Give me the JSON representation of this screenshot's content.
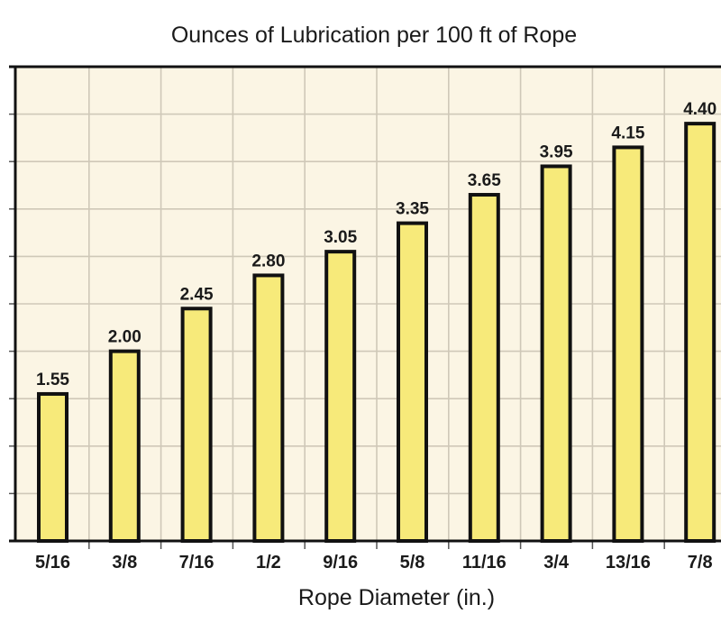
{
  "chart_data": {
    "type": "bar",
    "title": "Ounces of Lubrication per 100 ft of Rope",
    "xlabel": "Rope Diameter (in.)",
    "ylabel": "",
    "categories": [
      "5/16",
      "3/8",
      "7/16",
      "1/2",
      "9/16",
      "5/8",
      "11/16",
      "3/4",
      "13/16",
      "7/8"
    ],
    "values": [
      1.55,
      2.0,
      2.45,
      2.8,
      3.05,
      3.35,
      3.65,
      3.95,
      4.15,
      4.4
    ],
    "value_labels": [
      "1.55",
      "2.00",
      "2.45",
      "2.80",
      "3.05",
      "3.35",
      "3.65",
      "3.95",
      "4.15",
      "4.40"
    ],
    "ylim": [
      0,
      5
    ],
    "grid": true,
    "legend": "none",
    "colors": {
      "bar_fill": "#f7ea7a",
      "bar_stroke": "#111111",
      "plot_background": "#fbf5e4",
      "grid": "#cfc8b8",
      "axis": "#111111"
    }
  }
}
